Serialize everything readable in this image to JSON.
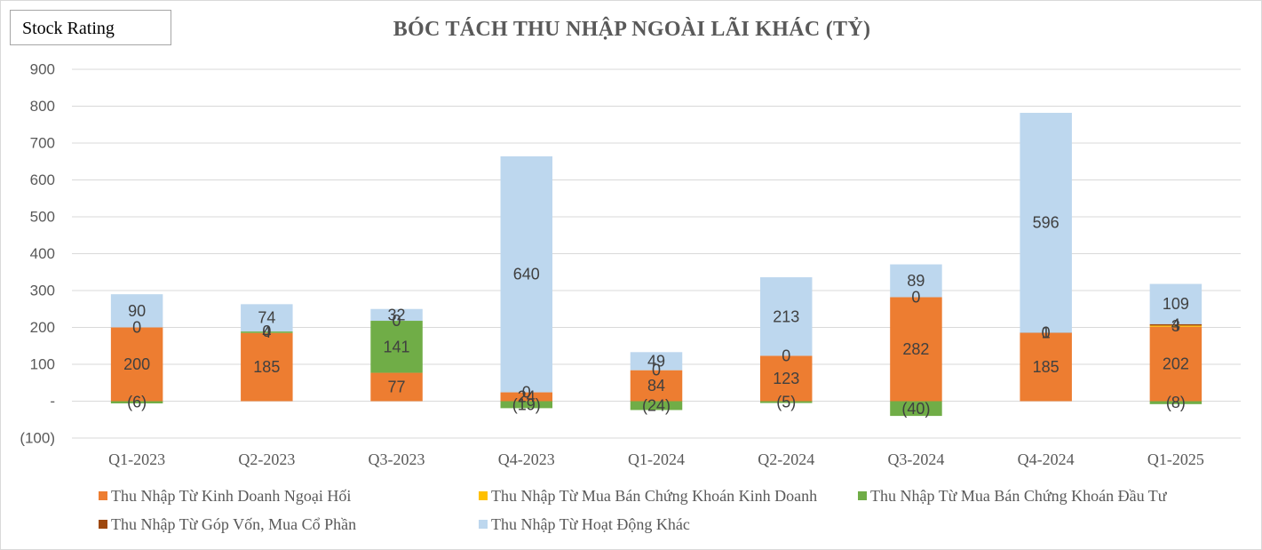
{
  "header": {
    "stock_rating_label": "Stock Rating"
  },
  "chart_data": {
    "type": "bar",
    "stacked": true,
    "title": "BÓC TÁCH THU NHẬP NGOÀI LÃI KHÁC (TỶ)",
    "xlabel": "",
    "ylabel": "",
    "categories": [
      "Q1-2023",
      "Q2-2023",
      "Q3-2023",
      "Q4-2023",
      "Q1-2024",
      "Q2-2024",
      "Q3-2024",
      "Q4-2024",
      "Q1-2025"
    ],
    "ylim": [
      -100,
      900
    ],
    "yticks": [
      900,
      800,
      700,
      600,
      500,
      400,
      300,
      200,
      100,
      0,
      -100
    ],
    "ytick_labels": [
      "900",
      "800",
      "700",
      "600",
      "500",
      "400",
      "300",
      "200",
      "100",
      "-",
      "(100)"
    ],
    "grid": true,
    "legend_position": "bottom",
    "data_labels": true,
    "gridline_color": "#D9D9D9",
    "series": [
      {
        "name": "Thu Nhập Từ Kinh Doanh Ngoại Hối",
        "color": "#ED7D31",
        "values": [
          200,
          185,
          77,
          24,
          84,
          123,
          282,
          185,
          202
        ]
      },
      {
        "name": "Thu Nhập Từ Mua Bán Chứng Khoán Kinh Doanh",
        "color": "#FFC000",
        "values": [
          null,
          null,
          null,
          null,
          null,
          null,
          null,
          null,
          3
        ]
      },
      {
        "name": "Thu Nhập Từ Mua Bán Chứng Khoán Đầu Tư",
        "color": "#70AD47",
        "values": [
          -6,
          4,
          141,
          -19,
          -24,
          -5,
          -40,
          0,
          -8
        ]
      },
      {
        "name": "Thu Nhập Từ Góp Vốn, Mua Cổ Phần",
        "color": "#9E480E",
        "values": [
          0,
          0,
          0,
          0,
          0,
          0,
          0,
          1,
          4
        ]
      },
      {
        "name": "Thu Nhập Từ Hoạt Động Khác",
        "color": "#BDD7EE",
        "values": [
          90,
          74,
          32,
          640,
          49,
          213,
          89,
          596,
          109
        ]
      }
    ]
  }
}
